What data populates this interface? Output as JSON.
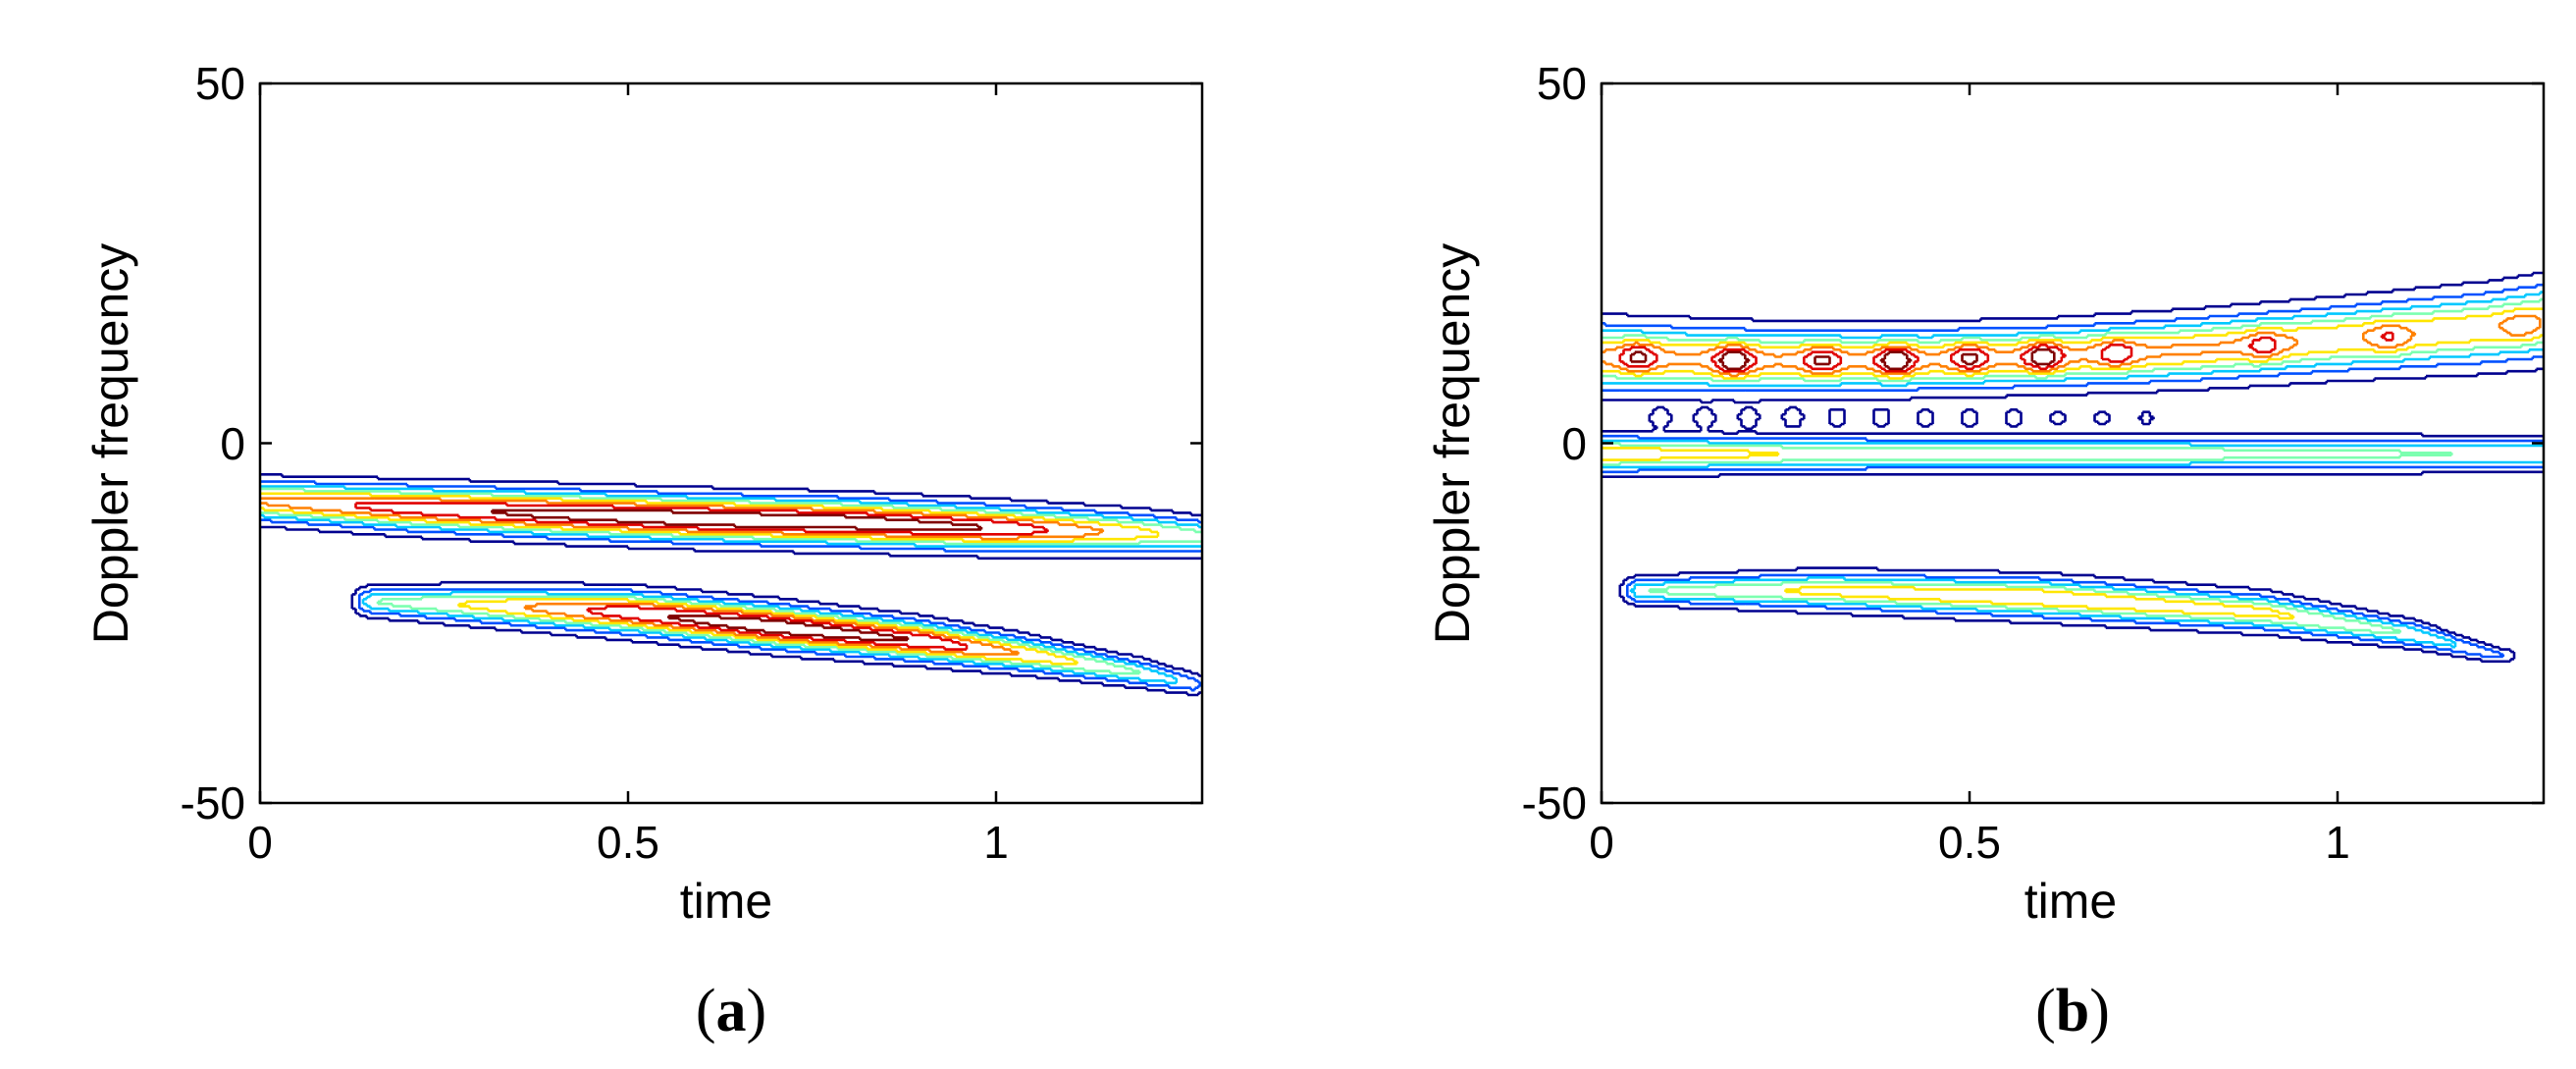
{
  "chart_data": [
    {
      "type": "contour",
      "panel_label": {
        "open": "(",
        "letter": "a",
        "close": ")"
      },
      "xlabel": "time",
      "ylabel": "Doppler frequency",
      "xlim": [
        0,
        1.28
      ],
      "ylim": [
        -50,
        50
      ],
      "xticks": [
        0,
        0.5,
        1
      ],
      "xtick_labels": [
        "0",
        "0.5",
        "1"
      ],
      "yticks": [
        50,
        0,
        -50
      ],
      "ytick_labels": [
        "50",
        "0",
        "-50"
      ],
      "grid": false,
      "contour_levels": [
        "#00008F",
        "#0050FF",
        "#00C8FF",
        "#7CFFB0",
        "#FFE600",
        "#FF8000",
        "#E00000",
        "#800000"
      ],
      "ridges": [
        {
          "name": "upper",
          "t": [
            0,
            0.2,
            0.4,
            0.6,
            0.8,
            1.0,
            1.2,
            1.28
          ],
          "f": [
            -8,
            -9,
            -9.8,
            -10.5,
            -11,
            -11.8,
            -12.5,
            -13
          ],
          "half_width": [
            2.4,
            2.6,
            2.7,
            2.7,
            2.7,
            2.6,
            2.4,
            2.2
          ],
          "intensity": [
            0.65,
            0.8,
            0.9,
            0.96,
            0.94,
            0.85,
            0.55,
            0.45
          ]
        },
        {
          "name": "lower",
          "t": [
            0.15,
            0.3,
            0.5,
            0.7,
            0.9,
            1.05,
            1.2,
            1.27
          ],
          "f": [
            -22,
            -22.5,
            -23.5,
            -25.5,
            -27.5,
            -29.5,
            -32,
            -33.5
          ],
          "half_width": [
            1.7,
            2.2,
            2.5,
            2.5,
            2.3,
            2,
            1.6,
            1.3
          ],
          "intensity": [
            0.4,
            0.55,
            0.82,
            0.96,
            0.85,
            0.6,
            0.4,
            0.25
          ]
        }
      ]
    },
    {
      "type": "contour",
      "panel_label": {
        "open": "(",
        "letter": "b",
        "close": ")"
      },
      "xlabel": "time",
      "ylabel": "Doppler frequency",
      "xlim": [
        0,
        1.28
      ],
      "ylim": [
        -50,
        50
      ],
      "xticks": [
        0,
        0.5,
        1
      ],
      "xtick_labels": [
        "0",
        "0.5",
        "1"
      ],
      "yticks": [
        50,
        0,
        -50
      ],
      "ytick_labels": [
        "50",
        "0",
        "-50"
      ],
      "grid": false,
      "contour_levels": [
        "#00008F",
        "#0050FF",
        "#00C8FF",
        "#7CFFB0",
        "#FFE600",
        "#FF8000",
        "#E00000",
        "#800000"
      ],
      "ridges": [
        {
          "name": "upper",
          "t": [
            0,
            0.2,
            0.4,
            0.6,
            0.8,
            1.0,
            1.2,
            1.28
          ],
          "f": [
            12,
            11.5,
            11.5,
            12,
            13,
            14.5,
            16,
            17
          ],
          "half_width": [
            4,
            3.8,
            3.6,
            3.6,
            3.8,
            4,
            4.4,
            4.6
          ],
          "intensity": [
            0.65,
            0.65,
            0.65,
            0.65,
            0.65,
            0.62,
            0.6,
            0.6
          ]
        },
        {
          "name": "middle",
          "t": [
            0,
            0.3,
            0.6,
            0.9,
            1.2,
            1.28
          ],
          "f": [
            -1.5,
            -1.5,
            -1.5,
            -1.5,
            -1.5,
            -1.5
          ],
          "half_width": [
            2.2,
            2,
            2,
            2,
            2,
            2
          ],
          "intensity": [
            0.6,
            0.5,
            0.48,
            0.45,
            0.4,
            0.4
          ]
        },
        {
          "name": "lower",
          "t": [
            0.05,
            0.3,
            0.6,
            0.9,
            1.1,
            1.22
          ],
          "f": [
            -20.5,
            -20.5,
            -21.5,
            -23.5,
            -26.5,
            -29.5
          ],
          "half_width": [
            1.6,
            2.2,
            2.4,
            2.2,
            1.6,
            1
          ],
          "intensity": [
            0.4,
            0.55,
            0.62,
            0.55,
            0.4,
            0.2
          ]
        }
      ],
      "peaks": [
        {
          "t": 0.05,
          "f": 12,
          "amp": 0.25
        },
        {
          "t": 0.18,
          "f": 11.5,
          "amp": 0.35
        },
        {
          "t": 0.3,
          "f": 11.5,
          "amp": 0.25
        },
        {
          "t": 0.4,
          "f": 11.5,
          "amp": 0.35
        },
        {
          "t": 0.5,
          "f": 11.8,
          "amp": 0.25
        },
        {
          "t": 0.6,
          "f": 12,
          "amp": 0.33
        },
        {
          "t": 0.7,
          "f": 12.5,
          "amp": 0.2
        },
        {
          "t": 0.9,
          "f": 13.5,
          "amp": 0.18
        },
        {
          "t": 1.07,
          "f": 14.5,
          "amp": 0.15
        },
        {
          "t": 1.25,
          "f": 16,
          "amp": 0.12
        }
      ],
      "cross_terms": {
        "f": 3.5,
        "t": [
          0.08,
          0.14,
          0.2,
          0.26,
          0.32,
          0.38,
          0.44,
          0.5,
          0.56,
          0.62,
          0.68,
          0.74
        ],
        "amp": [
          0.18,
          0.18,
          0.17,
          0.17,
          0.16,
          0.16,
          0.15,
          0.14,
          0.13,
          0.12,
          0.11,
          0.1
        ]
      }
    }
  ]
}
